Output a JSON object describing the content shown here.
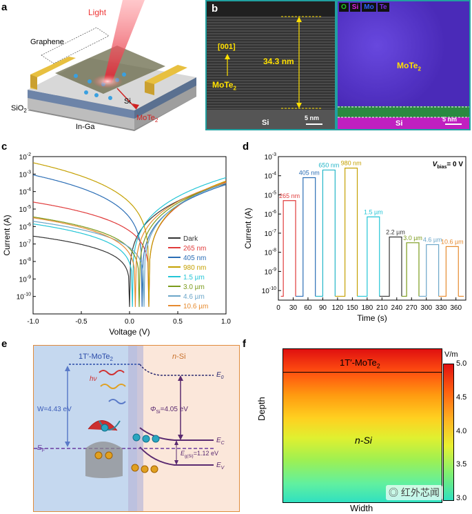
{
  "panels": {
    "a": "a",
    "b": "b",
    "c": "c",
    "d": "d",
    "e": "e",
    "f": "f"
  },
  "panel_a": {
    "light": "Light",
    "graphene": "Graphene",
    "sio2": "SiO",
    "sio2_sub": "2",
    "si": "Si",
    "ingal": "In-Ga",
    "mote2": "MoTe",
    "mote2_sub": "2"
  },
  "panel_b": {
    "direction": "[001]",
    "mote2": "MoTe",
    "mote2_sub": "2",
    "thickness": "34.3 nm",
    "si_left": "Si",
    "scale_left": "5 nm",
    "legend": [
      {
        "label": "O",
        "color": "#22cc22"
      },
      {
        "label": "Si",
        "color": "#e020e0"
      },
      {
        "label": "Mo",
        "color": "#2a60ff"
      },
      {
        "label": "Te",
        "color": "#7a2be0"
      }
    ],
    "map_mote2": "MoTe",
    "map_mote2_sub": "2",
    "si_right": "Si",
    "scale_right": "5 nm"
  },
  "chart_data": [
    {
      "type": "line",
      "panel": "c",
      "xlabel": "Voltage (V)",
      "ylabel": "Current (A)",
      "xlim": [
        -1.0,
        1.0
      ],
      "ylog_range": [
        -11,
        -2
      ],
      "xticks": [
        "-1.0",
        "-0.5",
        "0.0",
        "0.5",
        "1.0"
      ],
      "yticks": [
        {
          "e": -2,
          "base": "10",
          "exp": "-2"
        },
        {
          "e": -3,
          "base": "10",
          "exp": "-3"
        },
        {
          "e": -4,
          "base": "10",
          "exp": "-4"
        },
        {
          "e": -5,
          "base": "10",
          "exp": "-5"
        },
        {
          "e": -6,
          "base": "10",
          "exp": "-6"
        },
        {
          "e": -7,
          "base": "10",
          "exp": "-7"
        },
        {
          "e": -8,
          "base": "10",
          "exp": "-8"
        },
        {
          "e": -9,
          "base": "10",
          "exp": "-9"
        },
        {
          "e": -10,
          "base": "10",
          "exp": "-10"
        }
      ],
      "series": [
        {
          "name": "Dark",
          "color": "#333333",
          "left": -6.55,
          "vmin": 0.0,
          "right": -3.55
        },
        {
          "name": "265 nm",
          "color": "#e03a3a",
          "left": -4.6,
          "vmin": 0.2,
          "right": -3.45
        },
        {
          "name": "405 nm",
          "color": "#2a6db5",
          "left": -3.05,
          "vmin": 0.13,
          "right": -3.6
        },
        {
          "name": "980 nm",
          "color": "#c4a000",
          "left": -2.35,
          "vmin": 0.2,
          "right": -3.4
        },
        {
          "name": "1.5 µm",
          "color": "#22c5d6",
          "left": -5.85,
          "vmin": 0.03,
          "right": -3.2
        },
        {
          "name": "3.0 µm",
          "color": "#7a9a1a",
          "left": -5.45,
          "vmin": 0.1,
          "right": -3.5
        },
        {
          "name": "4.6 µm",
          "color": "#6aa5c8",
          "left": -5.7,
          "vmin": 0.15,
          "right": -3.52
        },
        {
          "name": "10.6 µm",
          "color": "#e68a2e",
          "left": -5.5,
          "vmin": 0.06,
          "right": -3.48
        }
      ]
    },
    {
      "type": "line",
      "panel": "d",
      "xlabel": "Time (s)",
      "ylabel": "Current (A)",
      "annotation": "V",
      "annotation_sub": "bias",
      "annotation_rest": "= 0 V",
      "xlim": [
        0,
        380
      ],
      "ylog_range": [
        -10.5,
        -3
      ],
      "xticks": [
        "0",
        "30",
        "60",
        "90",
        "120",
        "150",
        "180",
        "210",
        "240",
        "270",
        "300",
        "330",
        "360"
      ],
      "yticks": [
        {
          "e": -3,
          "base": "10",
          "exp": "-3"
        },
        {
          "e": -4,
          "base": "10",
          "exp": "-4"
        },
        {
          "e": -5,
          "base": "10",
          "exp": "-5"
        },
        {
          "e": -6,
          "base": "10",
          "exp": "-6"
        },
        {
          "e": -7,
          "base": "10",
          "exp": "-7"
        },
        {
          "e": -8,
          "base": "10",
          "exp": "-8"
        },
        {
          "e": -9,
          "base": "10",
          "exp": "-9"
        },
        {
          "e": -10,
          "base": "10",
          "exp": "-10"
        }
      ],
      "dark_level": -10.3,
      "pulses": [
        {
          "name": "265 nm",
          "color": "#e03a3a",
          "t_on": 10,
          "t_off": 35,
          "level": -5.3
        },
        {
          "name": "405 nm",
          "color": "#2a6db5",
          "t_on": 50,
          "t_off": 75,
          "level": -4.1
        },
        {
          "name": "650 nm",
          "color": "#22b5c8",
          "t_on": 90,
          "t_off": 115,
          "level": -3.7
        },
        {
          "name": "980 nm",
          "color": "#c4a000",
          "t_on": 135,
          "t_off": 160,
          "level": -3.6
        },
        {
          "name": "1.5 µm",
          "color": "#22c5d6",
          "t_on": 180,
          "t_off": 205,
          "level": -6.15
        },
        {
          "name": "2.2 µm",
          "color": "#333333",
          "t_on": 225,
          "t_off": 250,
          "level": -7.2
        },
        {
          "name": "3.0 µm",
          "color": "#7a9a1a",
          "t_on": 260,
          "t_off": 285,
          "level": -7.5
        },
        {
          "name": "4.6 µm",
          "color": "#6aa5c8",
          "t_on": 300,
          "t_off": 325,
          "level": -7.6
        },
        {
          "name": "10.6 µm",
          "color": "#e68a2e",
          "t_on": 340,
          "t_off": 365,
          "level": -7.7
        }
      ]
    },
    {
      "type": "heatmap",
      "panel": "f",
      "xlabel": "Width",
      "ylabel": "Depth",
      "unit": "V/m",
      "top_label": "1T′-MoTe",
      "top_label_sub": "2",
      "bottom_label": "n-Si",
      "colorbar_ticks": [
        "5.0",
        "4.5",
        "4.0",
        "3.5",
        "3.0"
      ],
      "crange": [
        3.0,
        5.0
      ]
    }
  ],
  "panel_e": {
    "left_title": "1T′-MoTe",
    "left_title_sub": "2",
    "right_title_n": "n",
    "right_title_rest": "-Si",
    "hv": "hν",
    "w": "W=4.43 eV",
    "phi": "Φ",
    "phi_sub": "Si",
    "phi_rest": "=4.05 eV",
    "e0": "E",
    "e0_sub": "0",
    "ef": "E",
    "ef_sub": "F",
    "ec": "E",
    "ec_sub": "C",
    "ev": "E",
    "ev_sub": "V",
    "eg": "E",
    "eg_sub": "g(Si)",
    "eg_rest": "=1.12 eV"
  },
  "watermark": "红外芯闻"
}
